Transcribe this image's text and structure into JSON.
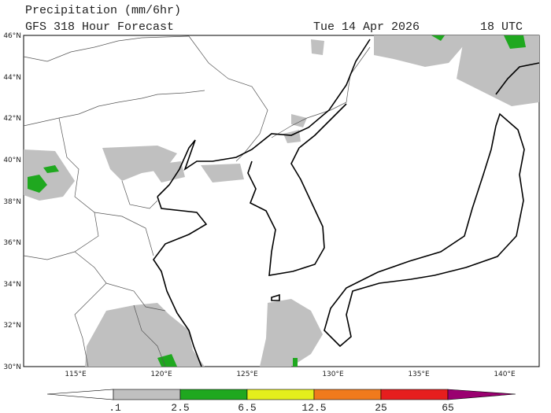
{
  "header": {
    "title": "Precipitation (mm/6hr)",
    "subtitle": "GFS 318 Hour Forecast",
    "date": "Tue 14 Apr 2026",
    "time": "18 UTC"
  },
  "map": {
    "lat_labels": [
      "46°N",
      "44°N",
      "42°N",
      "40°N",
      "38°N",
      "36°N",
      "34°N",
      "32°N",
      "30°N"
    ],
    "lon_labels": [
      "115°E",
      "120°E",
      "125°E",
      "130°E",
      "135°E",
      "140°E"
    ]
  },
  "colorbar": {
    "labels": [
      ".1",
      "2.5",
      "6.5",
      "12.5",
      "25",
      "65"
    ]
  }
}
